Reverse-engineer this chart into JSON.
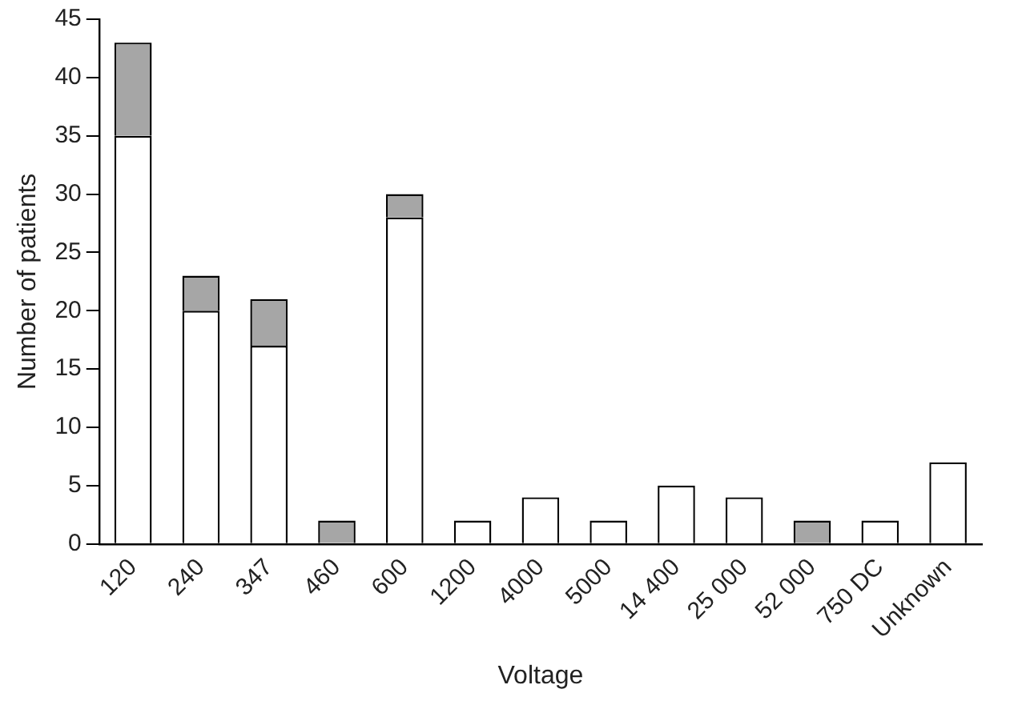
{
  "chart_data": {
    "type": "bar",
    "stacked": true,
    "xlabel": "Voltage",
    "ylabel": "Number of patients",
    "categories": [
      "120",
      "240",
      "347",
      "460",
      "600",
      "1200",
      "4000",
      "5000",
      "14 400",
      "25 000",
      "52 000",
      "750 DC",
      "Unknown"
    ],
    "series": [
      {
        "color": "#ffffff",
        "values": [
          35,
          20,
          17,
          0,
          28,
          2,
          4,
          2,
          5,
          4,
          0,
          2,
          7
        ]
      },
      {
        "color": "#a6a6a6",
        "values": [
          8,
          3,
          4,
          2,
          2,
          0,
          0,
          0,
          0,
          0,
          2,
          0,
          0
        ]
      }
    ],
    "ylim": [
      0,
      45
    ],
    "yticks": [
      0,
      5,
      10,
      15,
      20,
      25,
      30,
      35,
      40,
      45
    ],
    "grid": false,
    "legend": false
  }
}
